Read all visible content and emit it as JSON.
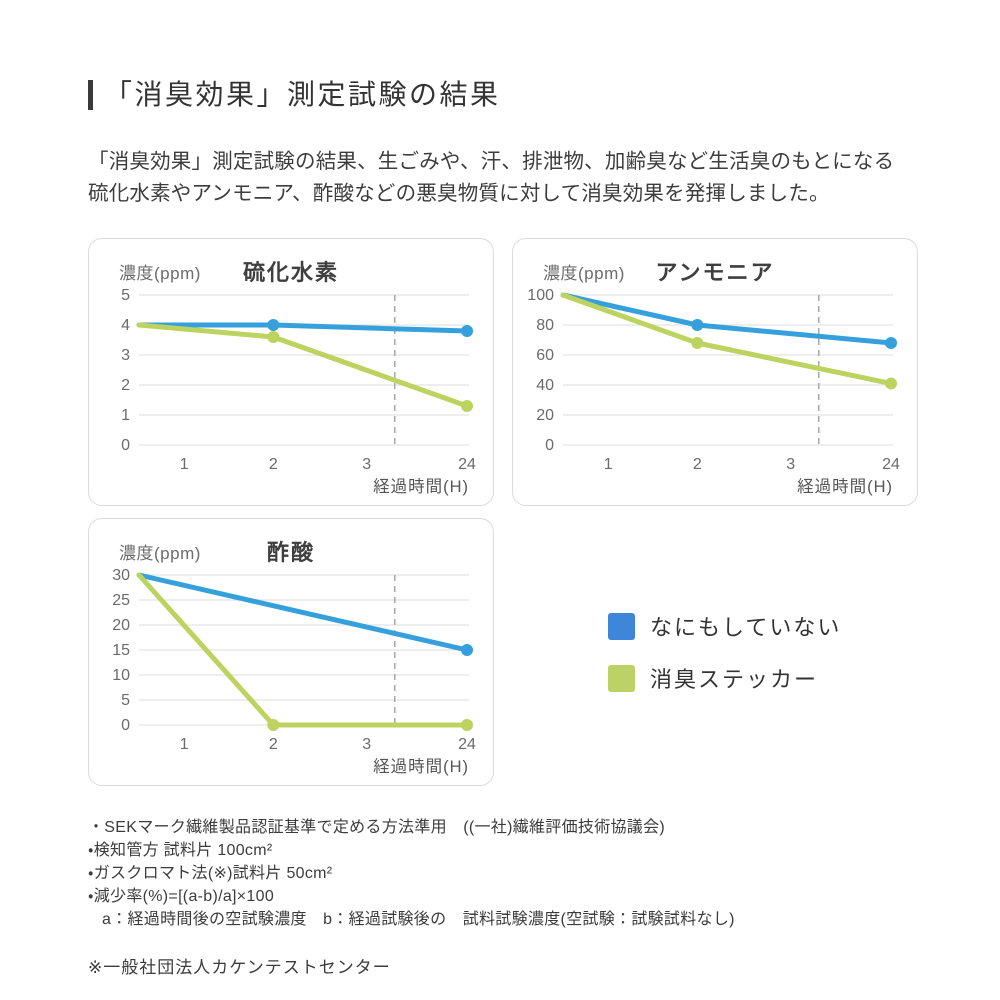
{
  "header": {
    "title": "「消臭効果」測定試験の結果",
    "intro_line1": "「消臭効果」測定試験の結果、生ごみや、汗、排泄物、加齢臭など生活臭のもとになる",
    "intro_line2": "硫化水素やアンモニア、酢酸などの悪臭物質に対して消臭効果を発揮しました。"
  },
  "colors": {
    "untreated_line": "#35a0db",
    "sticker_line": "#bcd35f",
    "untreated_swatch": "#3e86d9",
    "sticker_swatch": "#bcd266",
    "grid": "#e3e3e3",
    "axis_break_dash": "#ababab",
    "accent_bar": "#3a3a3a"
  },
  "legend": {
    "items": [
      {
        "label": "なにもしていない",
        "color": "#3e86d9"
      },
      {
        "label": "消臭ステッカー",
        "color": "#bcd266"
      }
    ]
  },
  "chart_data": [
    {
      "type": "line",
      "title": "硫化水素",
      "y_unit_label": "濃度(ppm)",
      "xlabel": "経過時間(H)",
      "x_ticks": [
        "1",
        "2",
        "3",
        "24"
      ],
      "y_ticks": [
        5,
        4,
        3,
        2,
        1,
        0
      ],
      "ylim": [
        0,
        5
      ],
      "grid": "horizontal",
      "axis_break_between": [
        "3",
        "24"
      ],
      "series": [
        {
          "name": "なにもしていない",
          "color": "untreated_line",
          "points": [
            {
              "t": 0,
              "v": 4
            },
            {
              "t": 2,
              "v": 4
            },
            {
              "t": 24,
              "v": 3.8
            }
          ]
        },
        {
          "name": "消臭ステッカー",
          "color": "sticker_line",
          "points": [
            {
              "t": 0,
              "v": 4
            },
            {
              "t": 2,
              "v": 3.6
            },
            {
              "t": 24,
              "v": 1.3
            }
          ]
        }
      ]
    },
    {
      "type": "line",
      "title": "アンモニア",
      "y_unit_label": "濃度(ppm)",
      "xlabel": "経過時間(H)",
      "x_ticks": [
        "1",
        "2",
        "3",
        "24"
      ],
      "y_ticks": [
        100,
        80,
        60,
        40,
        20,
        0
      ],
      "ylim": [
        0,
        100
      ],
      "grid": "horizontal",
      "axis_break_between": [
        "3",
        "24"
      ],
      "series": [
        {
          "name": "なにもしていない",
          "color": "untreated_line",
          "points": [
            {
              "t": 0,
              "v": 100
            },
            {
              "t": 2,
              "v": 80
            },
            {
              "t": 24,
              "v": 68
            }
          ]
        },
        {
          "name": "消臭ステッカー",
          "color": "sticker_line",
          "points": [
            {
              "t": 0,
              "v": 100
            },
            {
              "t": 2,
              "v": 68
            },
            {
              "t": 24,
              "v": 41
            }
          ]
        }
      ]
    },
    {
      "type": "line",
      "title": "酢酸",
      "y_unit_label": "濃度(ppm)",
      "xlabel": "経過時間(H)",
      "x_ticks": [
        "1",
        "2",
        "3",
        "24"
      ],
      "y_ticks": [
        30,
        25,
        20,
        15,
        10,
        5,
        0
      ],
      "ylim": [
        0,
        30
      ],
      "grid": "horizontal",
      "axis_break_between": [
        "3",
        "24"
      ],
      "series": [
        {
          "name": "なにもしていない",
          "color": "untreated_line",
          "points": [
            {
              "t": 0,
              "v": 30
            },
            {
              "t": 24,
              "v": 15
            }
          ]
        },
        {
          "name": "消臭ステッカー",
          "color": "sticker_line",
          "points": [
            {
              "t": 0,
              "v": 30
            },
            {
              "t": 2,
              "v": 0
            },
            {
              "t": 24,
              "v": 0
            }
          ]
        }
      ]
    }
  ],
  "footnotes": {
    "lines": [
      "・SEKマーク繊維製品認証基準で定める方法準用　((一社)繊維評価技術協議会)",
      "・検知管方 試料片 100cm²",
      "・ガスクロマト法(※)試料片 50cm²",
      "・減少率(%)=[(a-b)/a]×100",
      "a：経過時間後の空試験濃度　b：経過試験後の　試料試験濃度(空試験：試験試料なし)"
    ],
    "source": "※一般社団法人カケンテストセンター"
  }
}
